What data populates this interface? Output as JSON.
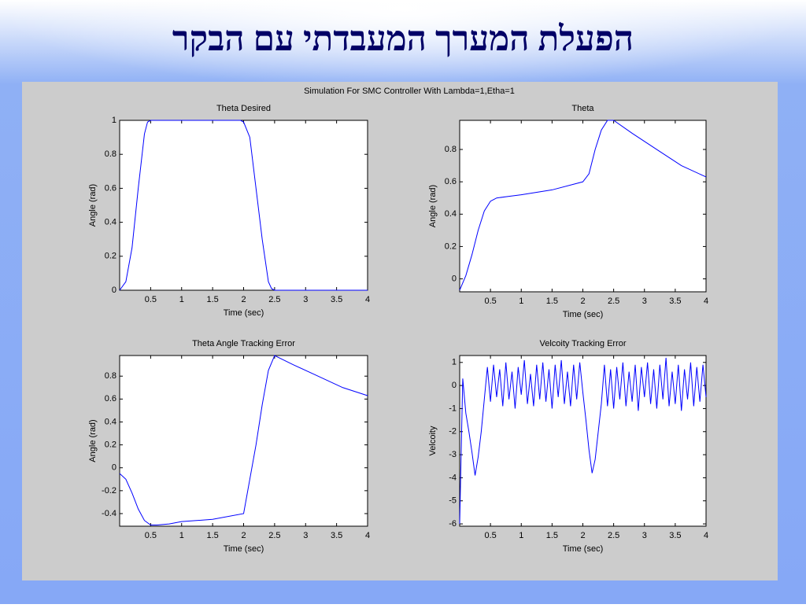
{
  "slide_title": "הפעלת המערך המעבדתי עם הבקר",
  "figure_title": "Simulation For SMC Controller With Lambda=1,Etha=1",
  "chart_data": [
    {
      "type": "line",
      "title": "Theta Desired",
      "xlabel": "Time (sec)",
      "ylabel": "Angle (rad)",
      "color": "#0000ff",
      "x": [
        0,
        0.1,
        0.2,
        0.3,
        0.4,
        0.45,
        0.5,
        1,
        1.5,
        1.95,
        2,
        2.1,
        2.2,
        2.3,
        2.4,
        2.45,
        2.5,
        3,
        3.5,
        4
      ],
      "values": [
        0,
        0.05,
        0.25,
        0.6,
        0.92,
        0.99,
        1,
        1,
        1,
        1,
        0.99,
        0.9,
        0.6,
        0.3,
        0.05,
        0.01,
        0,
        0,
        0,
        0
      ],
      "xlim": [
        0,
        4
      ],
      "xticks": [
        0.5,
        1,
        1.5,
        2,
        2.5,
        3,
        3.5,
        4
      ],
      "ylim": [
        0,
        1
      ],
      "yticks": [
        0,
        0.2,
        0.4,
        0.6,
        0.8,
        1
      ]
    },
    {
      "type": "line",
      "title": "Theta",
      "xlabel": "Time (sec)",
      "ylabel": "Angle (rad)",
      "color": "#0000ff",
      "x": [
        0,
        0.1,
        0.2,
        0.3,
        0.4,
        0.5,
        0.6,
        0.8,
        1,
        1.5,
        2,
        2.1,
        2.2,
        2.3,
        2.4,
        2.5,
        2.8,
        3.2,
        3.6,
        4
      ],
      "values": [
        -0.07,
        0.02,
        0.15,
        0.3,
        0.42,
        0.48,
        0.5,
        0.51,
        0.52,
        0.55,
        0.6,
        0.65,
        0.8,
        0.92,
        0.98,
        0.98,
        0.9,
        0.8,
        0.7,
        0.63
      ],
      "xlim": [
        0,
        4
      ],
      "xticks": [
        0.5,
        1,
        1.5,
        2,
        2.5,
        3,
        3.5,
        4
      ],
      "ylim": [
        -0.08,
        0.98
      ],
      "yticks": [
        0,
        0.2,
        0.4,
        0.6,
        0.8
      ]
    },
    {
      "type": "line",
      "title": "Theta Angle Tracking Error",
      "xlabel": "Time (sec)",
      "ylabel": "Angle (rad)",
      "color": "#0000ff",
      "x": [
        0,
        0.1,
        0.2,
        0.3,
        0.4,
        0.5,
        0.6,
        0.8,
        1,
        1.5,
        2,
        2.1,
        2.2,
        2.3,
        2.4,
        2.5,
        2.8,
        3.2,
        3.6,
        4
      ],
      "values": [
        -0.05,
        -0.1,
        -0.22,
        -0.36,
        -0.46,
        -0.5,
        -0.5,
        -0.49,
        -0.47,
        -0.45,
        -0.4,
        -0.1,
        0.2,
        0.55,
        0.85,
        0.98,
        0.9,
        0.8,
        0.7,
        0.63
      ],
      "xlim": [
        0,
        4
      ],
      "xticks": [
        0.5,
        1,
        1.5,
        2,
        2.5,
        3,
        3.5,
        4
      ],
      "ylim": [
        -0.51,
        0.98
      ],
      "yticks": [
        -0.4,
        -0.2,
        0,
        0.2,
        0.4,
        0.6,
        0.8
      ]
    },
    {
      "type": "line",
      "title": "Velcoity Tracking Error",
      "xlabel": "Time (sec)",
      "ylabel": "Velcoity",
      "color": "#0000ff",
      "x": [
        0,
        0.05,
        0.1,
        0.15,
        0.2,
        0.25,
        0.3,
        0.35,
        0.4,
        0.45,
        0.5,
        0.55,
        0.6,
        0.65,
        0.7,
        0.75,
        0.8,
        0.85,
        0.9,
        0.95,
        1,
        1.05,
        1.1,
        1.15,
        1.2,
        1.25,
        1.3,
        1.35,
        1.4,
        1.45,
        1.5,
        1.55,
        1.6,
        1.65,
        1.7,
        1.75,
        1.8,
        1.85,
        1.9,
        1.95,
        2,
        2.05,
        2.1,
        2.15,
        2.2,
        2.25,
        2.3,
        2.35,
        2.4,
        2.45,
        2.5,
        2.55,
        2.6,
        2.65,
        2.7,
        2.75,
        2.8,
        2.85,
        2.9,
        2.95,
        3,
        3.05,
        3.1,
        3.15,
        3.2,
        3.25,
        3.3,
        3.35,
        3.4,
        3.45,
        3.5,
        3.55,
        3.6,
        3.65,
        3.7,
        3.75,
        3.8,
        3.85,
        3.9,
        3.95,
        4
      ],
      "values": [
        -6,
        0.3,
        -1.2,
        -2,
        -2.9,
        -3.9,
        -3.1,
        -2,
        -0.6,
        0.8,
        -0.7,
        0.9,
        -0.5,
        0.7,
        -0.9,
        1,
        -0.6,
        0.6,
        -1,
        0.8,
        -0.4,
        1.1,
        -0.8,
        0.5,
        -0.9,
        0.9,
        -0.6,
        1,
        -0.7,
        0.7,
        -1,
        0.9,
        -0.5,
        1.1,
        -0.8,
        0.6,
        -0.9,
        0.9,
        -0.6,
        1,
        -0.3,
        -1.5,
        -2.8,
        -3.8,
        -3.2,
        -2,
        -0.8,
        0.9,
        -0.9,
        0.7,
        -1,
        0.8,
        -0.6,
        1,
        -0.9,
        0.6,
        -0.7,
        0.9,
        -1.1,
        0.8,
        -0.5,
        1,
        -0.8,
        0.7,
        -1,
        0.9,
        -0.6,
        1.2,
        -0.9,
        0.6,
        -0.8,
        0.9,
        -1.1,
        0.7,
        -0.6,
        1,
        -0.9,
        0.8,
        -0.7,
        0.9,
        -0.5
      ],
      "xlim": [
        0,
        4
      ],
      "xticks": [
        0.5,
        1,
        1.5,
        2,
        2.5,
        3,
        3.5,
        4
      ],
      "ylim": [
        -6.1,
        1.3
      ],
      "yticks": [
        -6,
        -5,
        -4,
        -3,
        -2,
        -1,
        0,
        1
      ]
    }
  ]
}
